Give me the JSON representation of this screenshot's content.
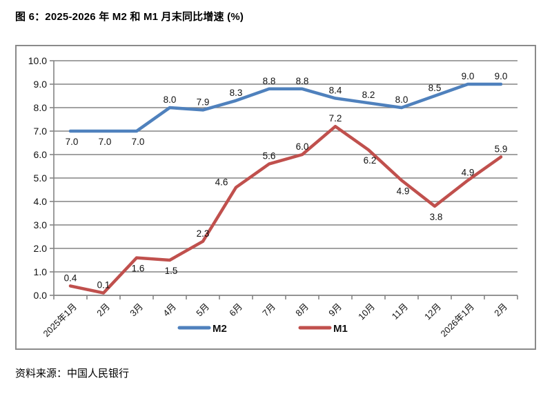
{
  "figure": {
    "title": "图 6：2025-2026 年 M2 和 M1 月末同比增速 (%)",
    "source": "资料来源：中国人民银行"
  },
  "chart_data": {
    "type": "line",
    "title": "图 6：2025-2026 年 M2 和 M1 月末同比增速 (%)",
    "categories": [
      "2025年1月",
      "2月",
      "3月",
      "4月",
      "5月",
      "6月",
      "7月",
      "8月",
      "9月",
      "10月",
      "11月",
      "12月",
      "2026年1月",
      "2月"
    ],
    "series": [
      {
        "name": "M2",
        "color": "#4F81BD",
        "values": [
          7.0,
          7.0,
          7.0,
          8.0,
          7.9,
          8.3,
          8.8,
          8.8,
          8.4,
          8.2,
          8.0,
          8.5,
          9.0,
          9.0
        ],
        "label_pos": [
          "below",
          "below",
          "below",
          "above",
          "above",
          "above",
          "above",
          "above",
          "above",
          "above",
          "above",
          "above",
          "above",
          "above"
        ]
      },
      {
        "name": "M1",
        "color": "#C0504D",
        "values": [
          0.4,
          0.1,
          1.6,
          1.5,
          2.3,
          4.6,
          5.6,
          6.0,
          7.2,
          6.2,
          4.9,
          3.8,
          4.9,
          5.9
        ],
        "label_pos": [
          "above",
          "above",
          "below",
          "below",
          "above",
          "left",
          "above",
          "above",
          "above",
          "below",
          "below",
          "below",
          "above",
          "above"
        ]
      }
    ],
    "ylim": [
      0,
      10
    ],
    "ytick_step": 1,
    "ytick_decimals": 1,
    "grid": true,
    "legend_position": "bottom",
    "colors": {
      "grid": "#848484",
      "axis": "#848484",
      "tick_text": "#111111",
      "data_label_text": "#111111"
    }
  }
}
